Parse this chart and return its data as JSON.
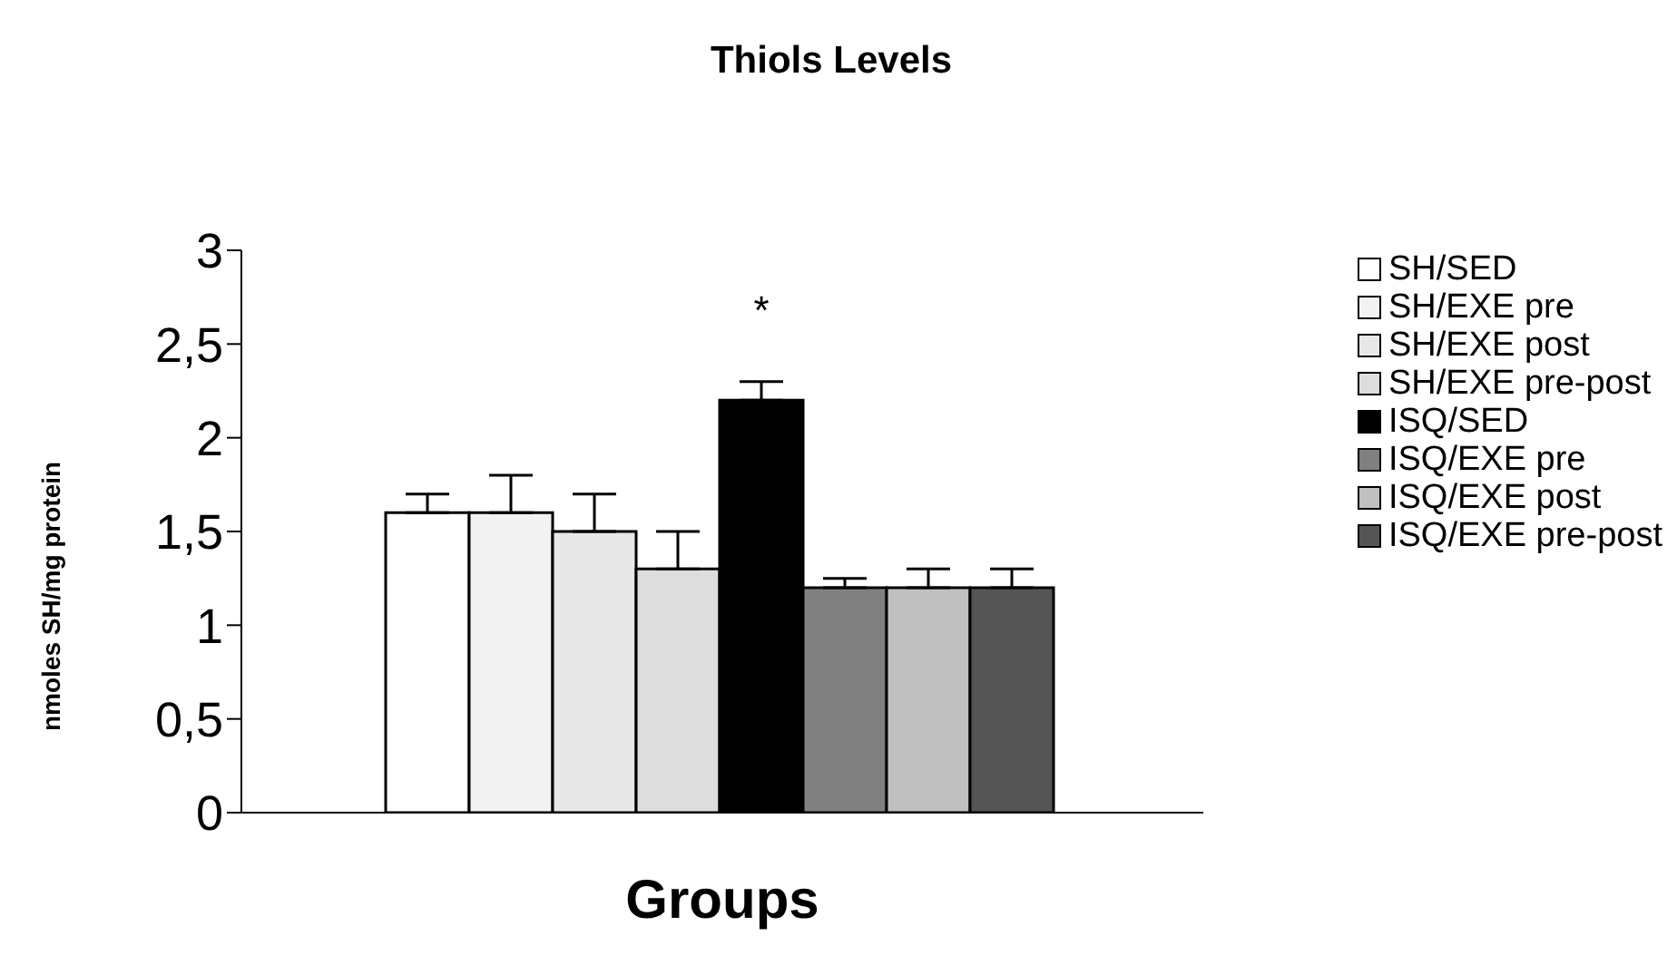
{
  "chart_data": {
    "type": "bar",
    "title": "Thiols Levels",
    "xlabel": "Groups",
    "ylabel": "nmoles SH/mg protein",
    "categories": [
      null
    ],
    "series": [
      {
        "name": "SH/SED",
        "color": "#ffffff",
        "values": [
          1.6
        ],
        "errors": [
          0.1
        ]
      },
      {
        "name": "SH/EXE pre",
        "color": "#f2f2f2",
        "values": [
          1.6
        ],
        "errors": [
          0.2
        ]
      },
      {
        "name": "SH/EXE post",
        "color": "#e8e8e8",
        "values": [
          1.5
        ],
        "errors": [
          0.2
        ]
      },
      {
        "name": "SH/EXE pre-post",
        "color": "#dddddd",
        "values": [
          1.3
        ],
        "errors": [
          0.2
        ]
      },
      {
        "name": "ISQ/SED",
        "color": "#000000",
        "values": [
          2.2
        ],
        "errors": [
          0.1
        ]
      },
      {
        "name": "ISQ/EXE pre",
        "color": "#808080",
        "values": [
          1.2
        ],
        "errors": [
          0.05
        ]
      },
      {
        "name": "ISQ/EXE post",
        "color": "#c0c0c0",
        "values": [
          1.2
        ],
        "errors": [
          0.1
        ]
      },
      {
        "name": "ISQ/EXE pre-post",
        "color": "#555555",
        "values": [
          1.2
        ],
        "errors": [
          0.1
        ]
      }
    ],
    "ylim": [
      0,
      3
    ],
    "yticks": [
      0,
      {
        "value": 0.5,
        "label": "0,5"
      },
      1,
      {
        "value": 1.5,
        "label": "1,5"
      },
      2,
      {
        "value": 2.5,
        "label": "2,5"
      },
      3
    ],
    "grid": false,
    "legend": "top right",
    "annotations": [
      "*"
    ]
  }
}
